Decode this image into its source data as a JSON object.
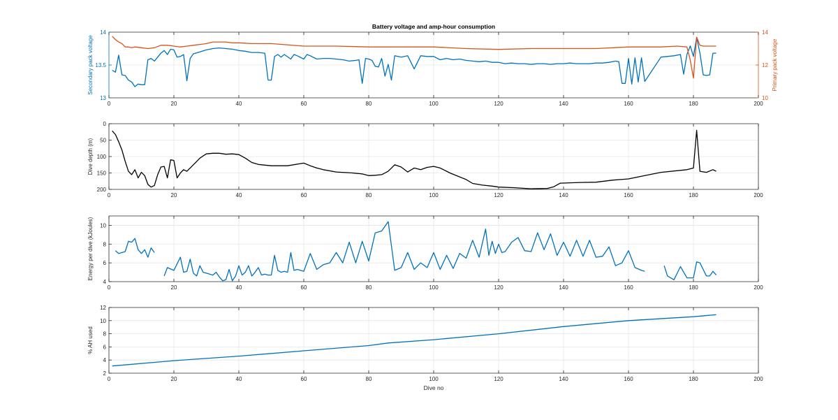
{
  "figure": {
    "title": "Battery voltage and amp-hour consumption",
    "xlabel": "Dive no"
  },
  "chart_data": [
    {
      "type": "line",
      "title": "Battery voltage and amp-hour consumption",
      "xlabel": "",
      "xlim": [
        0,
        200
      ],
      "xticks": [
        0,
        20,
        40,
        60,
        80,
        100,
        120,
        140,
        160,
        180,
        200
      ],
      "grid": true,
      "left_axis": {
        "label": "Secondary pack voltage",
        "ylim": [
          13,
          14
        ],
        "ticks": [
          13,
          13.5,
          14
        ],
        "tick_labels": [
          "13",
          "13.5",
          "14"
        ],
        "color": "#0072BD"
      },
      "right_axis": {
        "label": "Primary pack voltage",
        "ylim": [
          10,
          14
        ],
        "ticks": [
          10,
          12,
          14
        ],
        "tick_labels": [
          "10",
          "12",
          "14"
        ],
        "color": "#D95319"
      },
      "series": [
        {
          "axis": "left",
          "color": "#0072BD",
          "x": [
            1,
            2,
            3,
            4,
            5,
            6,
            7,
            8,
            9,
            10,
            11,
            12,
            13,
            14,
            15,
            16,
            17,
            18,
            19,
            20,
            21,
            22,
            23,
            24,
            25,
            26,
            28,
            30,
            32,
            34,
            36,
            38,
            40,
            42,
            44,
            46,
            48,
            49,
            50,
            51,
            52,
            53,
            54,
            56,
            57,
            58,
            60,
            61,
            62,
            64,
            66,
            68,
            70,
            72,
            74,
            76,
            77,
            78,
            79,
            80,
            81,
            82,
            83,
            84,
            85,
            86,
            87,
            88,
            90,
            92,
            94,
            96,
            98,
            100,
            102,
            104,
            106,
            108,
            110,
            112,
            114,
            116,
            118,
            120,
            122,
            124,
            126,
            128,
            130,
            132,
            134,
            136,
            138,
            140,
            142,
            144,
            146,
            148,
            150,
            152,
            154,
            156,
            157,
            158,
            159,
            160,
            161,
            162,
            163,
            164,
            165,
            170,
            174,
            176,
            177,
            178,
            179,
            180,
            181,
            182,
            183,
            184,
            185,
            186,
            187
          ],
          "y": [
            13.42,
            13.39,
            13.65,
            13.35,
            13.34,
            13.27,
            13.24,
            13.17,
            13.21,
            13.2,
            13.2,
            13.58,
            13.6,
            13.56,
            13.62,
            13.68,
            13.72,
            13.66,
            13.74,
            13.73,
            13.62,
            13.63,
            13.66,
            13.26,
            13.6,
            13.67,
            13.7,
            13.73,
            13.75,
            13.76,
            13.75,
            13.74,
            13.72,
            13.71,
            13.69,
            13.69,
            13.68,
            13.27,
            13.27,
            13.63,
            13.66,
            13.62,
            13.66,
            13.59,
            13.66,
            13.64,
            13.59,
            13.66,
            13.64,
            13.59,
            13.6,
            13.6,
            13.59,
            13.58,
            13.56,
            13.57,
            13.58,
            13.22,
            13.6,
            13.59,
            13.57,
            13.48,
            13.47,
            13.6,
            13.33,
            13.51,
            13.27,
            13.64,
            13.62,
            13.64,
            13.44,
            13.64,
            13.63,
            13.63,
            13.58,
            13.6,
            13.58,
            13.59,
            13.57,
            13.56,
            13.55,
            13.56,
            13.54,
            13.54,
            13.52,
            13.53,
            13.52,
            13.52,
            13.51,
            13.52,
            13.52,
            13.51,
            13.52,
            13.52,
            13.53,
            13.52,
            13.52,
            13.52,
            13.53,
            13.53,
            13.54,
            13.56,
            13.55,
            13.22,
            13.22,
            13.6,
            13.21,
            13.61,
            13.24,
            13.61,
            13.25,
            13.62,
            13.64,
            13.66,
            13.36,
            13.66,
            13.79,
            13.63,
            13.92,
            13.68,
            13.35,
            13.34,
            13.35,
            13.68,
            13.68
          ]
        },
        {
          "axis": "right",
          "color": "#D95319",
          "x": [
            1,
            2,
            3,
            4,
            5,
            6,
            7,
            8,
            10,
            12,
            14,
            16,
            18,
            20,
            22,
            24,
            26,
            28,
            30,
            32,
            34,
            36,
            38,
            40,
            44,
            50,
            60,
            70,
            80,
            90,
            100,
            110,
            120,
            130,
            140,
            150,
            160,
            170,
            175,
            178,
            179,
            180,
            181,
            182,
            183,
            185,
            187
          ],
          "y": [
            13.75,
            13.55,
            13.4,
            13.3,
            13.1,
            13.1,
            13.05,
            13.1,
            13.05,
            13.0,
            13.05,
            13.2,
            13.2,
            13.15,
            13.1,
            13.15,
            13.2,
            13.25,
            13.3,
            13.4,
            13.4,
            13.4,
            13.35,
            13.35,
            13.3,
            13.3,
            13.15,
            13.15,
            13.1,
            13.1,
            13.1,
            13.0,
            12.95,
            13.0,
            13.0,
            13.0,
            13.1,
            13.1,
            13.15,
            13.1,
            12.3,
            11.2,
            13.7,
            13.2,
            13.15,
            13.15,
            13.15
          ]
        }
      ]
    },
    {
      "type": "line",
      "xlim": [
        0,
        200
      ],
      "xticks": [
        0,
        20,
        40,
        60,
        80,
        100,
        120,
        140,
        160,
        180,
        200
      ],
      "ylabel": "Dive depth (m)",
      "ylim": [
        0,
        200
      ],
      "y_reversed": true,
      "yticks": [
        0,
        50,
        100,
        150,
        200
      ],
      "grid": true,
      "series": [
        {
          "color": "#000000",
          "x": [
            1,
            2,
            3,
            4,
            5,
            6,
            7,
            8,
            9,
            10,
            11,
            12,
            13,
            14,
            15,
            16,
            17,
            18,
            19,
            20,
            21,
            22,
            23,
            24,
            25,
            26,
            27,
            28,
            29,
            30,
            32,
            34,
            36,
            38,
            40,
            42,
            44,
            46,
            50,
            55,
            60,
            62,
            64,
            66,
            70,
            75,
            78,
            80,
            82,
            84,
            86,
            88,
            90,
            92,
            94,
            96,
            98,
            100,
            102,
            105,
            110,
            112,
            115,
            118,
            120,
            125,
            130,
            135,
            137,
            139,
            145,
            150,
            155,
            160,
            165,
            170,
            178,
            180,
            181,
            182,
            184,
            186,
            187
          ],
          "y": [
            22,
            33,
            55,
            80,
            115,
            145,
            155,
            140,
            165,
            148,
            158,
            185,
            193,
            188,
            155,
            132,
            130,
            165,
            110,
            112,
            165,
            150,
            140,
            145,
            135,
            125,
            115,
            105,
            98,
            92,
            90,
            90,
            93,
            92,
            94,
            105,
            118,
            124,
            128,
            128,
            120,
            128,
            135,
            140,
            147,
            150,
            153,
            158,
            157,
            155,
            145,
            125,
            132,
            147,
            135,
            140,
            133,
            130,
            135,
            150,
            170,
            182,
            187,
            190,
            193,
            195,
            198,
            197,
            192,
            181,
            179,
            178,
            172,
            168,
            158,
            148,
            140,
            135,
            20,
            145,
            148,
            140,
            145
          ]
        }
      ]
    },
    {
      "type": "line",
      "xlim": [
        0,
        200
      ],
      "xticks": [
        0,
        20,
        40,
        60,
        80,
        100,
        120,
        140,
        160,
        180,
        200
      ],
      "ylabel": "Energy per dive (kJoules)",
      "ylim": [
        4,
        11
      ],
      "yticks": [
        4,
        6,
        8,
        10
      ],
      "grid": true,
      "series": [
        {
          "color": "#0072BD",
          "segments": [
            {
              "x": [
                2,
                3,
                4,
                5,
                6,
                7,
                8,
                9,
                10,
                11,
                12,
                13,
                14
              ],
              "y": [
                7.3,
                7.0,
                7.1,
                7.2,
                8.3,
                8.2,
                8.6,
                7.4,
                7.0,
                7.4,
                6.6,
                7.6,
                7.1
              ]
            },
            {
              "x": [
                17,
                18,
                20,
                22,
                23,
                24,
                25,
                26,
                27,
                28,
                29,
                30,
                31,
                32,
                33,
                34,
                35,
                36,
                37,
                38,
                39,
                40,
                41,
                42,
                43,
                44,
                45,
                46,
                47,
                48,
                49,
                50,
                51,
                52,
                53,
                54,
                55,
                56,
                57,
                58,
                60,
                62,
                64,
                66,
                68,
                70,
                72,
                74,
                76,
                78,
                80,
                82,
                84,
                86,
                88,
                90,
                92,
                94,
                96,
                98,
                100,
                102,
                104,
                106,
                108,
                110,
                112,
                114,
                116,
                117,
                118,
                119,
                120,
                121,
                122,
                124,
                126,
                128,
                130,
                132,
                134,
                136,
                138,
                140,
                142,
                144,
                146,
                148,
                150,
                152,
                154,
                156,
                158,
                160,
                162,
                164,
                165
              ],
              "y": [
                4.6,
                5.5,
                5.2,
                6.6,
                5.0,
                5.1,
                6.4,
                4.9,
                4.6,
                5.7,
                5.0,
                4.9,
                4.8,
                4.7,
                5.0,
                4.5,
                4.1,
                4.2,
                5.3,
                4.1,
                4.6,
                5.7,
                4.7,
                5.0,
                5.7,
                4.6,
                5.0,
                5.5,
                4.7,
                4.8,
                4.7,
                4.7,
                6.8,
                5.2,
                5.0,
                5.1,
                5.0,
                7.1,
                5.2,
                5.3,
                5.1,
                7.0,
                5.3,
                5.8,
                6.0,
                7.1,
                6.0,
                8.2,
                6.0,
                8.3,
                6.2,
                9.2,
                9.4,
                10.4,
                5.2,
                5.5,
                7.1,
                5.3,
                6.0,
                5.5,
                7.1,
                5.3,
                6.8,
                5.4,
                7.0,
                6.5,
                8.4,
                6.6,
                9.6,
                6.8,
                8.3,
                7.0,
                8.0,
                7.1,
                7.2,
                8.2,
                8.7,
                7.3,
                7.2,
                9.2,
                7.4,
                9.1,
                6.8,
                8.2,
                6.7,
                8.4,
                6.7,
                8.4,
                6.6,
                6.7,
                7.7,
                5.7,
                6.0,
                7.3,
                5.5,
                5.2,
                5.1
              ]
            },
            {
              "x": [
                171,
                172,
                174,
                176,
                178,
                180,
                181,
                182,
                184,
                185,
                186,
                187
              ],
              "y": [
                5.7,
                4.6,
                4.2,
                5.6,
                4.4,
                4.4,
                6.1,
                6.0,
                4.6,
                4.6,
                5.1,
                4.7
              ]
            }
          ]
        }
      ]
    },
    {
      "type": "line",
      "xlabel": "Dive no",
      "xlim": [
        0,
        200
      ],
      "xticks": [
        0,
        20,
        40,
        60,
        80,
        100,
        120,
        140,
        160,
        180,
        200
      ],
      "ylabel": "% AH used",
      "ylim": [
        2,
        12
      ],
      "yticks": [
        2,
        4,
        6,
        8,
        10,
        12
      ],
      "grid": true,
      "series": [
        {
          "color": "#0072BD",
          "x": [
            1,
            20,
            40,
            60,
            80,
            86,
            100,
            120,
            140,
            160,
            180,
            187
          ],
          "y": [
            3.1,
            3.9,
            4.6,
            5.4,
            6.2,
            6.6,
            7.1,
            8.0,
            9.1,
            10.0,
            10.6,
            10.9
          ]
        }
      ]
    }
  ]
}
